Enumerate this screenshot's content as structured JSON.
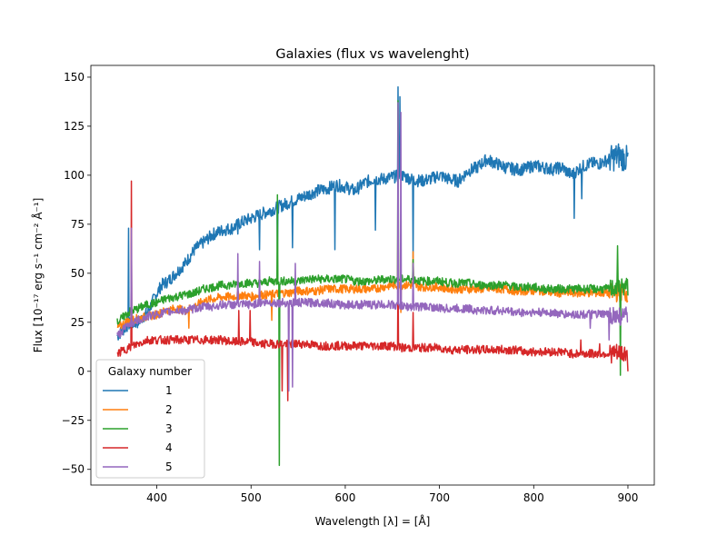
{
  "chart_data": {
    "type": "line",
    "title": "Galaxies (flux vs wavelenght)",
    "xlabel": "Wavelength [λ] = [Å]",
    "ylabel": "Flux [10⁻¹⁷ erg s⁻¹ cm⁻² Å⁻¹]",
    "xlim": [
      330,
      928
    ],
    "ylim": [
      -58,
      156
    ],
    "x_ticks": [
      400,
      500,
      600,
      700,
      800,
      900
    ],
    "y_ticks": [
      -50,
      -25,
      0,
      25,
      50,
      75,
      100,
      125,
      150
    ],
    "grid": false,
    "legend": {
      "title": "Galaxy number",
      "placement": "lower-left"
    },
    "series": [
      {
        "name": "1",
        "color": "#1f77b4",
        "points": [
          [
            358,
            18
          ],
          [
            370,
            24
          ],
          [
            380,
            25
          ],
          [
            390,
            30
          ],
          [
            398,
            38
          ],
          [
            405,
            44
          ],
          [
            412,
            46
          ],
          [
            420,
            50
          ],
          [
            430,
            55
          ],
          [
            440,
            62
          ],
          [
            450,
            66
          ],
          [
            460,
            70
          ],
          [
            470,
            72
          ],
          [
            480,
            73
          ],
          [
            490,
            76
          ],
          [
            500,
            78
          ],
          [
            510,
            80
          ],
          [
            520,
            82
          ],
          [
            530,
            84
          ],
          [
            540,
            86
          ],
          [
            550,
            88
          ],
          [
            560,
            90
          ],
          [
            570,
            92
          ],
          [
            580,
            93
          ],
          [
            590,
            95
          ],
          [
            600,
            94
          ],
          [
            610,
            92
          ],
          [
            620,
            96
          ],
          [
            630,
            98
          ],
          [
            640,
            98
          ],
          [
            650,
            99
          ],
          [
            660,
            100
          ],
          [
            670,
            98
          ],
          [
            680,
            97
          ],
          [
            690,
            98
          ],
          [
            700,
            100
          ],
          [
            710,
            98
          ],
          [
            720,
            97
          ],
          [
            730,
            102
          ],
          [
            740,
            104
          ],
          [
            750,
            108
          ],
          [
            760,
            106
          ],
          [
            770,
            104
          ],
          [
            780,
            103
          ],
          [
            790,
            103
          ],
          [
            800,
            105
          ],
          [
            810,
            104
          ],
          [
            820,
            103
          ],
          [
            830,
            104
          ],
          [
            840,
            100
          ],
          [
            850,
            104
          ],
          [
            860,
            106
          ],
          [
            870,
            106
          ],
          [
            880,
            108
          ],
          [
            890,
            110
          ],
          [
            900,
            108
          ]
        ],
        "spikes": [
          [
            370,
            73
          ],
          [
            486,
            70
          ],
          [
            509,
            62
          ],
          [
            525,
            80
          ],
          [
            528,
            60
          ],
          [
            544,
            63
          ],
          [
            589,
            62
          ],
          [
            632,
            72
          ],
          [
            656,
            145
          ],
          [
            658,
            140
          ],
          [
            672,
            58
          ],
          [
            843,
            78
          ],
          [
            851,
            88
          ]
        ]
      },
      {
        "name": "2",
        "color": "#ff7f0e",
        "points": [
          [
            358,
            22
          ],
          [
            370,
            26
          ],
          [
            380,
            27
          ],
          [
            390,
            28
          ],
          [
            400,
            29
          ],
          [
            410,
            31
          ],
          [
            420,
            32
          ],
          [
            430,
            31
          ],
          [
            440,
            33
          ],
          [
            450,
            36
          ],
          [
            460,
            37
          ],
          [
            470,
            38
          ],
          [
            480,
            38
          ],
          [
            490,
            39
          ],
          [
            500,
            38
          ],
          [
            510,
            39
          ],
          [
            520,
            39
          ],
          [
            530,
            40
          ],
          [
            540,
            40
          ],
          [
            550,
            41
          ],
          [
            560,
            41
          ],
          [
            570,
            41
          ],
          [
            580,
            42
          ],
          [
            590,
            42
          ],
          [
            600,
            42
          ],
          [
            610,
            42
          ],
          [
            620,
            42
          ],
          [
            630,
            42
          ],
          [
            640,
            43
          ],
          [
            650,
            44
          ],
          [
            660,
            44
          ],
          [
            670,
            44
          ],
          [
            680,
            43
          ],
          [
            690,
            43
          ],
          [
            700,
            43
          ],
          [
            710,
            42
          ],
          [
            720,
            42
          ],
          [
            730,
            42
          ],
          [
            740,
            42
          ],
          [
            750,
            42
          ],
          [
            760,
            42
          ],
          [
            770,
            42
          ],
          [
            780,
            41
          ],
          [
            790,
            41
          ],
          [
            800,
            41
          ],
          [
            810,
            41
          ],
          [
            820,
            40
          ],
          [
            830,
            40
          ],
          [
            840,
            40
          ],
          [
            850,
            40
          ],
          [
            860,
            40
          ],
          [
            870,
            40
          ],
          [
            880,
            40
          ],
          [
            890,
            40
          ],
          [
            900,
            40
          ]
        ],
        "spikes": [
          [
            373,
            42
          ],
          [
            434,
            22
          ],
          [
            522,
            26
          ],
          [
            656,
            90
          ],
          [
            659,
            30
          ],
          [
            672,
            61
          ]
        ]
      },
      {
        "name": "3",
        "color": "#2ca02c",
        "points": [
          [
            358,
            25
          ],
          [
            370,
            30
          ],
          [
            380,
            32
          ],
          [
            390,
            34
          ],
          [
            400,
            35
          ],
          [
            410,
            37
          ],
          [
            420,
            38
          ],
          [
            430,
            39
          ],
          [
            440,
            40
          ],
          [
            450,
            42
          ],
          [
            460,
            43
          ],
          [
            470,
            44
          ],
          [
            480,
            44
          ],
          [
            490,
            45
          ],
          [
            500,
            45
          ],
          [
            510,
            45
          ],
          [
            520,
            46
          ],
          [
            530,
            46
          ],
          [
            540,
            46
          ],
          [
            550,
            46
          ],
          [
            560,
            47
          ],
          [
            570,
            47
          ],
          [
            580,
            47
          ],
          [
            590,
            47
          ],
          [
            600,
            47
          ],
          [
            610,
            46
          ],
          [
            620,
            46
          ],
          [
            630,
            46
          ],
          [
            640,
            47
          ],
          [
            650,
            47
          ],
          [
            660,
            47
          ],
          [
            670,
            47
          ],
          [
            680,
            46
          ],
          [
            690,
            46
          ],
          [
            700,
            46
          ],
          [
            710,
            45
          ],
          [
            720,
            45
          ],
          [
            730,
            45
          ],
          [
            740,
            44
          ],
          [
            750,
            44
          ],
          [
            760,
            44
          ],
          [
            770,
            44
          ],
          [
            780,
            43
          ],
          [
            790,
            43
          ],
          [
            800,
            43
          ],
          [
            810,
            42
          ],
          [
            820,
            42
          ],
          [
            830,
            42
          ],
          [
            840,
            42
          ],
          [
            850,
            42
          ],
          [
            860,
            42
          ],
          [
            870,
            42
          ],
          [
            880,
            42
          ],
          [
            890,
            43
          ],
          [
            900,
            43
          ]
        ],
        "spikes": [
          [
            373,
            33
          ],
          [
            528,
            90
          ],
          [
            530,
            -48
          ],
          [
            656,
            138
          ],
          [
            672,
            57
          ],
          [
            889,
            64
          ],
          [
            892,
            -2
          ]
        ]
      },
      {
        "name": "4",
        "color": "#d62728",
        "points": [
          [
            358,
            9
          ],
          [
            370,
            12
          ],
          [
            380,
            14
          ],
          [
            390,
            16
          ],
          [
            400,
            16
          ],
          [
            410,
            16
          ],
          [
            420,
            16
          ],
          [
            430,
            16
          ],
          [
            440,
            16
          ],
          [
            450,
            16
          ],
          [
            460,
            16
          ],
          [
            470,
            16
          ],
          [
            480,
            15
          ],
          [
            490,
            15
          ],
          [
            500,
            15
          ],
          [
            510,
            14
          ],
          [
            520,
            14
          ],
          [
            530,
            14
          ],
          [
            540,
            14
          ],
          [
            550,
            14
          ],
          [
            560,
            14
          ],
          [
            570,
            13
          ],
          [
            580,
            13
          ],
          [
            590,
            13
          ],
          [
            600,
            13
          ],
          [
            610,
            13
          ],
          [
            620,
            13
          ],
          [
            630,
            13
          ],
          [
            640,
            13
          ],
          [
            650,
            13
          ],
          [
            660,
            12
          ],
          [
            670,
            12
          ],
          [
            680,
            12
          ],
          [
            690,
            12
          ],
          [
            700,
            12
          ],
          [
            710,
            11
          ],
          [
            720,
            11
          ],
          [
            730,
            11
          ],
          [
            740,
            11
          ],
          [
            750,
            11
          ],
          [
            760,
            11
          ],
          [
            770,
            11
          ],
          [
            780,
            11
          ],
          [
            790,
            10
          ],
          [
            800,
            10
          ],
          [
            810,
            10
          ],
          [
            820,
            10
          ],
          [
            830,
            10
          ],
          [
            840,
            9
          ],
          [
            850,
            9
          ],
          [
            860,
            9
          ],
          [
            870,
            9
          ],
          [
            880,
            9
          ],
          [
            890,
            9
          ],
          [
            900,
            9
          ]
        ],
        "spikes": [
          [
            373,
            97
          ],
          [
            487,
            31
          ],
          [
            499,
            31
          ],
          [
            533,
            -10
          ],
          [
            539,
            -15
          ],
          [
            656,
            52
          ],
          [
            658,
            13
          ],
          [
            672,
            30
          ],
          [
            850,
            16
          ],
          [
            870,
            14
          ],
          [
            900,
            0
          ]
        ]
      },
      {
        "name": "5",
        "color": "#9467bd",
        "points": [
          [
            358,
            18
          ],
          [
            370,
            24
          ],
          [
            380,
            26
          ],
          [
            390,
            28
          ],
          [
            400,
            29
          ],
          [
            410,
            30
          ],
          [
            420,
            31
          ],
          [
            430,
            31
          ],
          [
            440,
            32
          ],
          [
            450,
            33
          ],
          [
            460,
            33
          ],
          [
            470,
            34
          ],
          [
            480,
            34
          ],
          [
            490,
            34
          ],
          [
            500,
            34
          ],
          [
            510,
            35
          ],
          [
            520,
            35
          ],
          [
            530,
            35
          ],
          [
            540,
            35
          ],
          [
            550,
            35
          ],
          [
            560,
            35
          ],
          [
            570,
            35
          ],
          [
            580,
            35
          ],
          [
            590,
            34
          ],
          [
            600,
            34
          ],
          [
            610,
            34
          ],
          [
            620,
            34
          ],
          [
            630,
            34
          ],
          [
            640,
            34
          ],
          [
            650,
            34
          ],
          [
            660,
            33
          ],
          [
            670,
            33
          ],
          [
            680,
            33
          ],
          [
            690,
            33
          ],
          [
            700,
            32
          ],
          [
            710,
            32
          ],
          [
            720,
            32
          ],
          [
            730,
            32
          ],
          [
            740,
            31
          ],
          [
            750,
            31
          ],
          [
            760,
            31
          ],
          [
            770,
            31
          ],
          [
            780,
            30
          ],
          [
            790,
            30
          ],
          [
            800,
            30
          ],
          [
            810,
            30
          ],
          [
            820,
            30
          ],
          [
            830,
            29
          ],
          [
            840,
            29
          ],
          [
            850,
            29
          ],
          [
            860,
            29
          ],
          [
            870,
            29
          ],
          [
            880,
            29
          ],
          [
            890,
            28
          ],
          [
            900,
            28
          ]
        ],
        "spikes": [
          [
            373,
            73
          ],
          [
            486,
            60
          ],
          [
            509,
            56
          ],
          [
            540,
            -10
          ],
          [
            544,
            -8
          ],
          [
            547,
            55
          ],
          [
            656,
            137
          ],
          [
            659,
            132
          ],
          [
            672,
            55
          ],
          [
            860,
            22
          ],
          [
            880,
            16
          ]
        ]
      }
    ]
  }
}
